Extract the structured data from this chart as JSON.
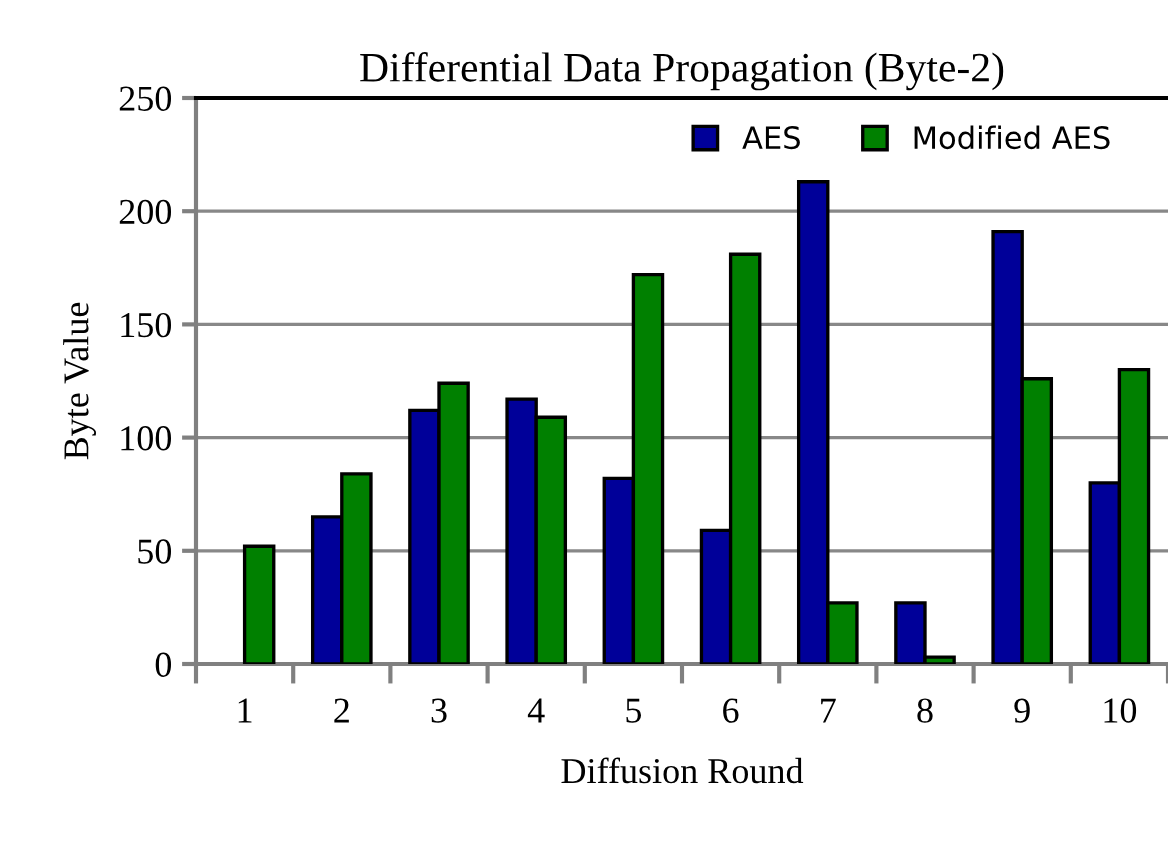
{
  "chart_data": {
    "type": "bar",
    "title": "Differential Data Propagation (Byte-2)",
    "xlabel": "Diffusion Round",
    "ylabel": "Byte Value",
    "categories": [
      "1",
      "2",
      "3",
      "4",
      "5",
      "6",
      "7",
      "8",
      "9",
      "10"
    ],
    "series": [
      {
        "name": "AES",
        "color": "#000099",
        "values": [
          null,
          65,
          112,
          117,
          82,
          59,
          213,
          27,
          191,
          80
        ]
      },
      {
        "name": "Modified AES",
        "color": "#008000",
        "values": [
          52,
          84,
          124,
          109,
          172,
          181,
          27,
          3,
          126,
          130
        ]
      }
    ],
    "ylim": [
      0,
      250
    ],
    "yticks": [
      0,
      50,
      100,
      150,
      200,
      250
    ],
    "grid": "y",
    "legend": "top right"
  }
}
